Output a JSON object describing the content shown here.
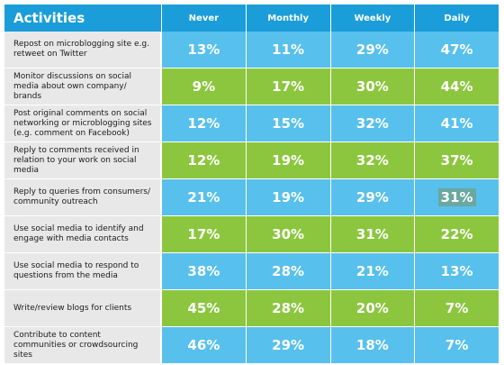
{
  "chart_data": {
    "type": "table",
    "title": "Activities",
    "columns": [
      "Never",
      "Monthly",
      "Weekly",
      "Daily"
    ],
    "rows": [
      {
        "label": "Repost on microblogging site e.g. retweet on Twitter",
        "values": [
          "13%",
          "11%",
          "29%",
          "47%"
        ]
      },
      {
        "label": "Monitor discussions on social media about own company/ brands",
        "values": [
          "9%",
          "17%",
          "30%",
          "44%"
        ]
      },
      {
        "label": "Post original comments on social networking or microblogging sites (e.g. comment on Facebook)",
        "values": [
          "12%",
          "15%",
          "32%",
          "41%"
        ]
      },
      {
        "label": "Reply to comments received in relation to your work on social media",
        "values": [
          "12%",
          "19%",
          "32%",
          "37%"
        ]
      },
      {
        "label": "Reply to queries from consumers/ community outreach",
        "values": [
          "21%",
          "19%",
          "29%",
          "31%"
        ]
      },
      {
        "label": "Use social media to identify and engage with media contacts",
        "values": [
          "17%",
          "30%",
          "31%",
          "22%"
        ]
      },
      {
        "label": "Use social media to respond to questions from the media",
        "values": [
          "38%",
          "28%",
          "21%",
          "13%"
        ]
      },
      {
        "label": "Write/review blogs for clients",
        "values": [
          "45%",
          "28%",
          "20%",
          "7%"
        ]
      },
      {
        "label": "Contribute to content communities or crowdsourcing sites",
        "values": [
          "46%",
          "29%",
          "18%",
          "7%"
        ]
      }
    ]
  },
  "colors": {
    "header": "#1a9dd9",
    "blue_row": "#58c0ec",
    "green_row": "#8cc63f",
    "label_bg": "#e8e8e8"
  }
}
